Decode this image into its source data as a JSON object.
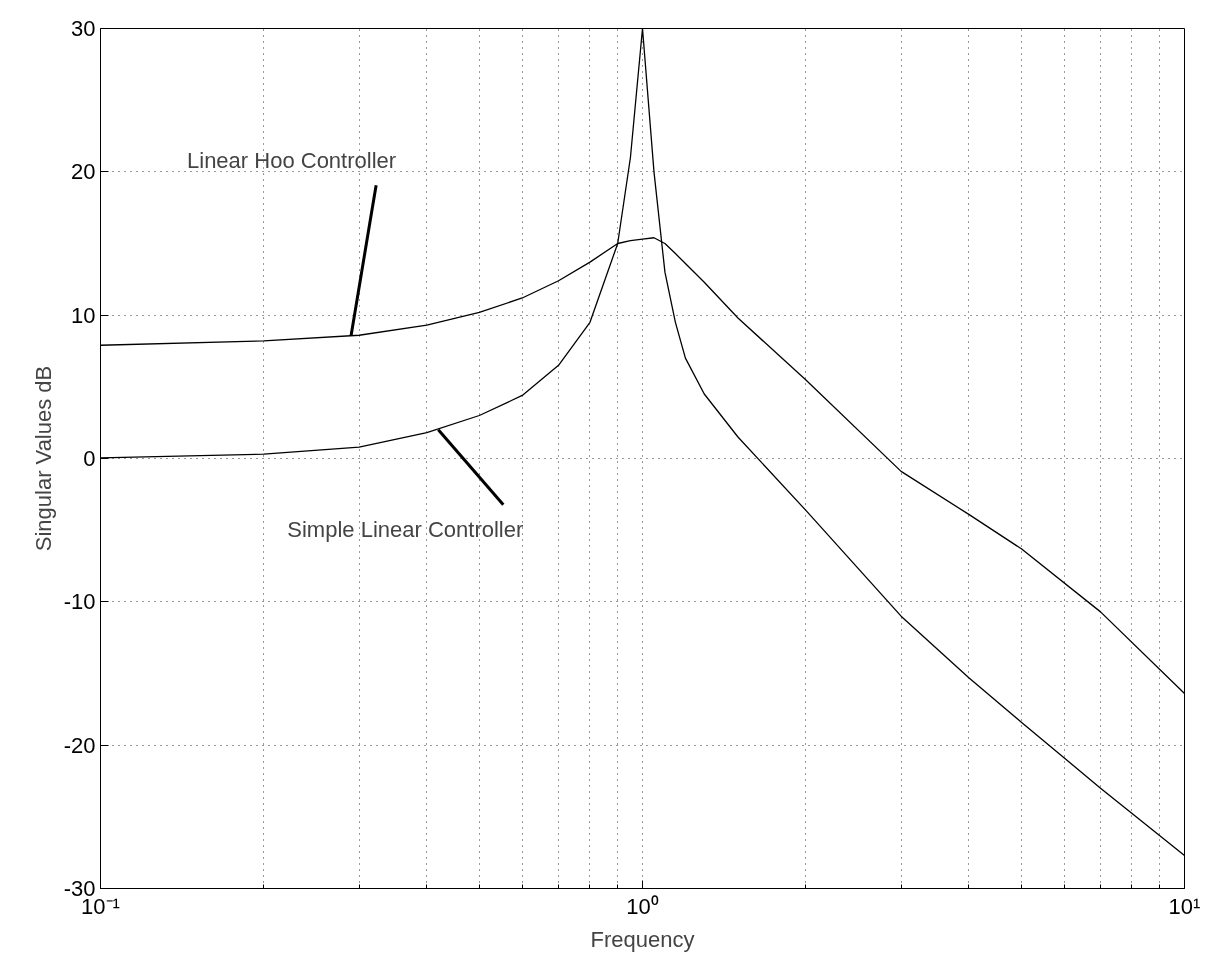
{
  "chart_data": {
    "type": "line",
    "xlabel": "Frequency",
    "ylabel": "Singular Values dB",
    "x": [
      0.1,
      0.2,
      0.3,
      0.4,
      0.5,
      0.6,
      0.7,
      0.8,
      0.9,
      0.95,
      1.0,
      1.05,
      1.1,
      1.15,
      1.2,
      1.3,
      1.5,
      2,
      3,
      4,
      5,
      7,
      10
    ],
    "series": [
      {
        "color": "#000000",
        "values": [
          7.9,
          8.2,
          8.6,
          9.3,
          10.2,
          11.2,
          12.4,
          13.7,
          15.0,
          15.2,
          15.3,
          15.4,
          15.0,
          14.3,
          13.6,
          12.3,
          9.8,
          5.5,
          -0.9,
          -3.9,
          -6.3,
          -10.7,
          -16.4
        ]
      },
      {
        "color": "#000000",
        "values": [
          0.05,
          0.3,
          0.8,
          1.8,
          3.0,
          4.4,
          6.5,
          9.5,
          15.0,
          21.0,
          30.0,
          20.0,
          13.0,
          9.5,
          7.0,
          4.5,
          1.5,
          -3.6,
          -11.0,
          -15.3,
          -18.4,
          -23.0,
          -27.7
        ]
      }
    ],
    "annotations": [
      {
        "text": "Linear Hoo Controller",
        "x": 0.29,
        "y": 8.6
      },
      {
        "text": "Simple Linear Controller",
        "x": 0.42,
        "y": 2.0
      }
    ],
    "log": "x",
    "xlim": [
      0.1,
      10
    ],
    "ylim": [
      -30,
      30
    ],
    "xticks": [
      {
        "value": 0.1,
        "label": "10⁻¹"
      },
      {
        "value": 1,
        "label": "10⁰"
      },
      {
        "value": 10,
        "label": "10¹"
      }
    ],
    "yticks": [
      -30,
      -20,
      -10,
      0,
      10,
      20,
      30
    ],
    "grid": true,
    "line_style": "solid",
    "marker": "none"
  }
}
